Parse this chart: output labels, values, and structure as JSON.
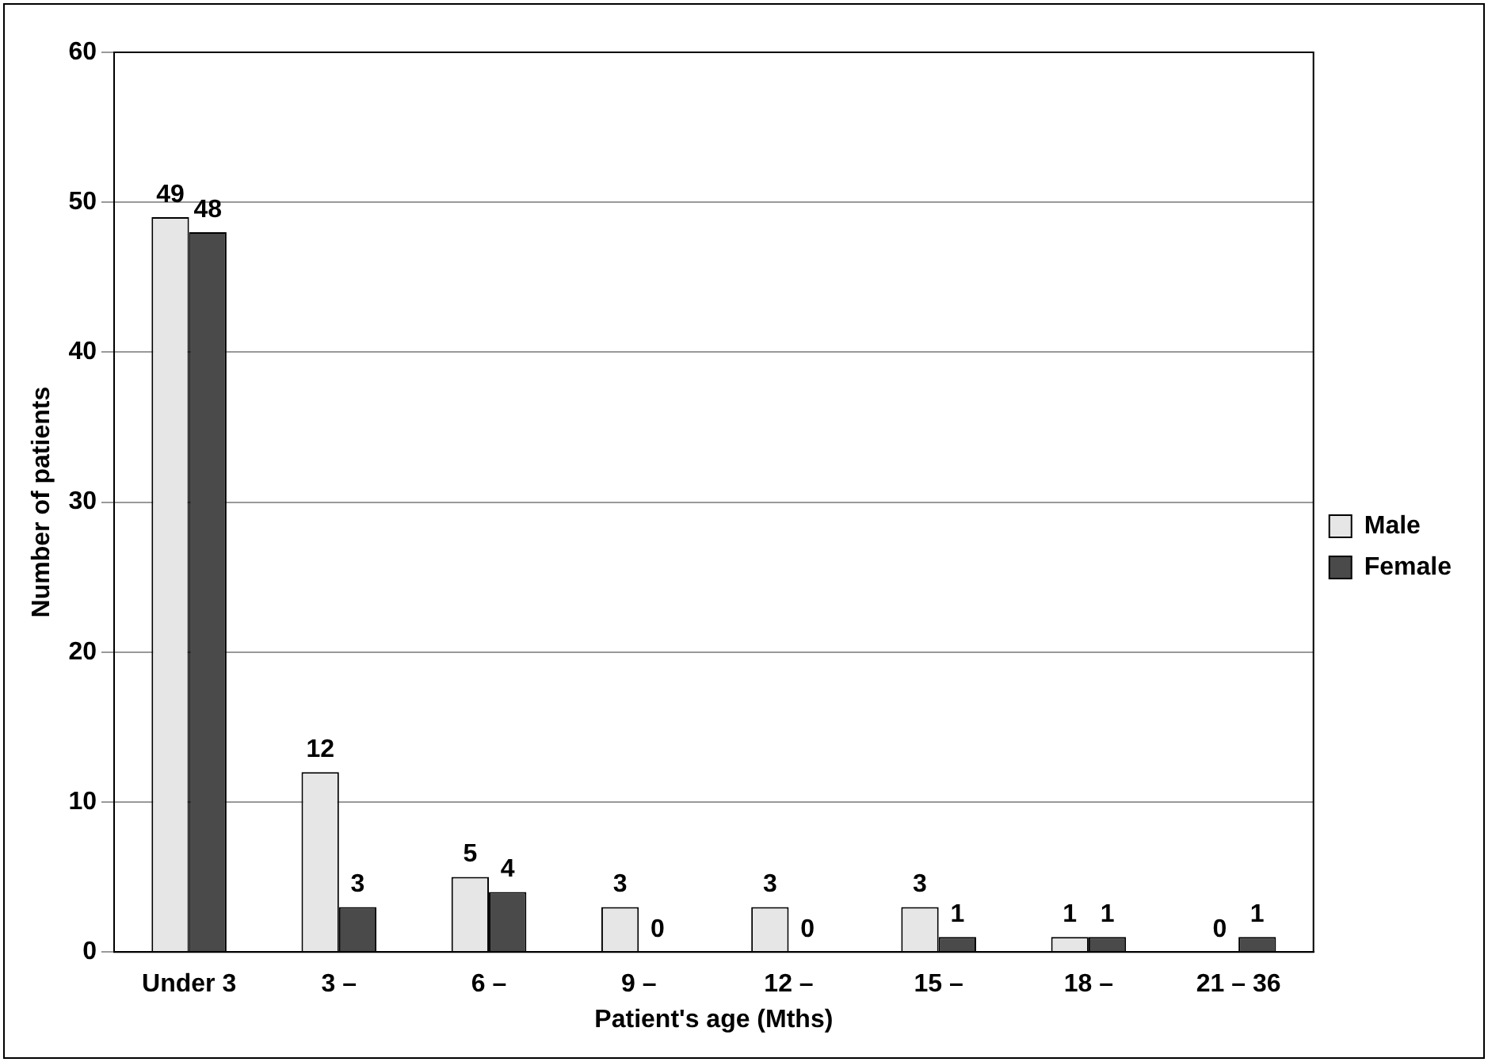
{
  "chart_data": {
    "type": "bar",
    "xlabel": "Patient's age (Mths)",
    "ylabel": "Number of patients",
    "categories": [
      "Under 3",
      "3 –",
      "6 –",
      "9 –",
      "12 –",
      "15 –",
      "18 –",
      "21 – 36"
    ],
    "series": [
      {
        "name": "Male",
        "color": "#e6e6e6",
        "values": [
          49,
          12,
          5,
          3,
          3,
          3,
          1,
          0
        ]
      },
      {
        "name": "Female",
        "color": "#4a4a4a",
        "values": [
          48,
          3,
          4,
          0,
          0,
          1,
          1,
          1
        ]
      }
    ],
    "ylim": [
      0,
      60
    ],
    "yticks": [
      0,
      10,
      20,
      30,
      40,
      50,
      60
    ],
    "grid": "y",
    "legend": "right",
    "data_labels": true
  }
}
